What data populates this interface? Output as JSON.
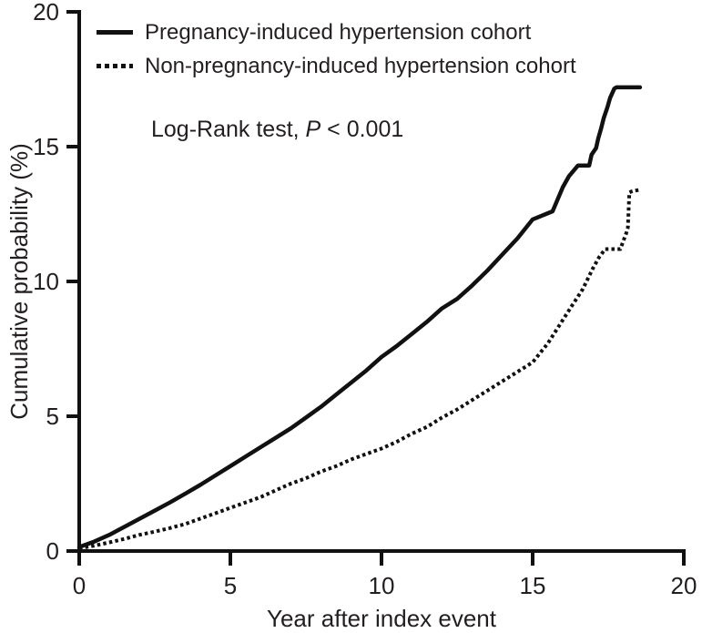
{
  "chart_data": {
    "type": "line",
    "title": "",
    "xlabel": "Year after index event",
    "ylabel": "Cumulative probability (%)",
    "xlim": [
      0,
      20
    ],
    "ylim": [
      0,
      20
    ],
    "xticks": [
      0,
      5,
      10,
      15,
      20
    ],
    "yticks": [
      0,
      5,
      10,
      15,
      20
    ],
    "grid": false,
    "legend_position": "top-left",
    "colors": {
      "line": "#111111",
      "text": "#231f20"
    },
    "annotation": {
      "prefix": "Log-Rank test, ",
      "p_symbol": "P",
      "suffix": " < 0.001"
    },
    "series": [
      {
        "name": "Pregnancy-induced hypertension cohort",
        "line_style": "solid",
        "points": [
          [
            0,
            0.15
          ],
          [
            0.5,
            0.35
          ],
          [
            1,
            0.6
          ],
          [
            1.5,
            0.9
          ],
          [
            2,
            1.2
          ],
          [
            2.5,
            1.5
          ],
          [
            3,
            1.8
          ],
          [
            3.5,
            2.12
          ],
          [
            4,
            2.45
          ],
          [
            4.5,
            2.8
          ],
          [
            5,
            3.15
          ],
          [
            5.5,
            3.5
          ],
          [
            6,
            3.85
          ],
          [
            6.5,
            4.2
          ],
          [
            7,
            4.55
          ],
          [
            7.5,
            4.95
          ],
          [
            8,
            5.35
          ],
          [
            8.5,
            5.8
          ],
          [
            9,
            6.25
          ],
          [
            9.5,
            6.7
          ],
          [
            10,
            7.2
          ],
          [
            10.5,
            7.6
          ],
          [
            11,
            8.05
          ],
          [
            11.5,
            8.5
          ],
          [
            12,
            9.0
          ],
          [
            12.5,
            9.35
          ],
          [
            13,
            9.85
          ],
          [
            13.5,
            10.4
          ],
          [
            14,
            11.0
          ],
          [
            14.5,
            11.6
          ],
          [
            15,
            12.3
          ],
          [
            15.66,
            12.6
          ],
          [
            16,
            13.5
          ],
          [
            16.2,
            13.9
          ],
          [
            16.5,
            14.3
          ],
          [
            16.87,
            14.3
          ],
          [
            16.95,
            14.7
          ],
          [
            17.1,
            14.95
          ],
          [
            17.17,
            15.3
          ],
          [
            17.26,
            15.65
          ],
          [
            17.35,
            16.05
          ],
          [
            17.47,
            16.45
          ],
          [
            17.56,
            16.8
          ],
          [
            17.7,
            17.15
          ],
          [
            17.77,
            17.2
          ],
          [
            18.55,
            17.2
          ]
        ]
      },
      {
        "name": "Non-pregnancy-induced hypertension cohort",
        "line_style": "dotted",
        "points": [
          [
            0,
            0.1
          ],
          [
            0.5,
            0.2
          ],
          [
            1,
            0.32
          ],
          [
            1.5,
            0.45
          ],
          [
            2,
            0.6
          ],
          [
            2.5,
            0.72
          ],
          [
            3,
            0.85
          ],
          [
            3.5,
            1.0
          ],
          [
            4,
            1.2
          ],
          [
            4.5,
            1.4
          ],
          [
            5,
            1.6
          ],
          [
            5.5,
            1.8
          ],
          [
            6,
            2.0
          ],
          [
            6.5,
            2.25
          ],
          [
            7,
            2.5
          ],
          [
            7.5,
            2.7
          ],
          [
            8,
            2.95
          ],
          [
            8.5,
            3.15
          ],
          [
            9,
            3.4
          ],
          [
            9.5,
            3.6
          ],
          [
            10,
            3.8
          ],
          [
            10.5,
            4.05
          ],
          [
            11,
            4.35
          ],
          [
            11.5,
            4.6
          ],
          [
            12,
            4.95
          ],
          [
            12.5,
            5.25
          ],
          [
            13,
            5.6
          ],
          [
            13.5,
            5.95
          ],
          [
            14,
            6.3
          ],
          [
            14.5,
            6.65
          ],
          [
            15,
            7.0
          ],
          [
            15.5,
            7.7
          ],
          [
            15.9,
            8.4
          ],
          [
            16.3,
            9.1
          ],
          [
            16.65,
            9.7
          ],
          [
            17,
            10.5
          ],
          [
            17.2,
            10.9
          ],
          [
            17.4,
            11.2
          ],
          [
            17.9,
            11.2
          ],
          [
            18.0,
            11.5
          ],
          [
            18.1,
            11.8
          ],
          [
            18.15,
            12.0
          ],
          [
            18.2,
            13.3
          ],
          [
            18.3,
            13.35
          ],
          [
            18.55,
            13.4
          ]
        ]
      }
    ]
  }
}
